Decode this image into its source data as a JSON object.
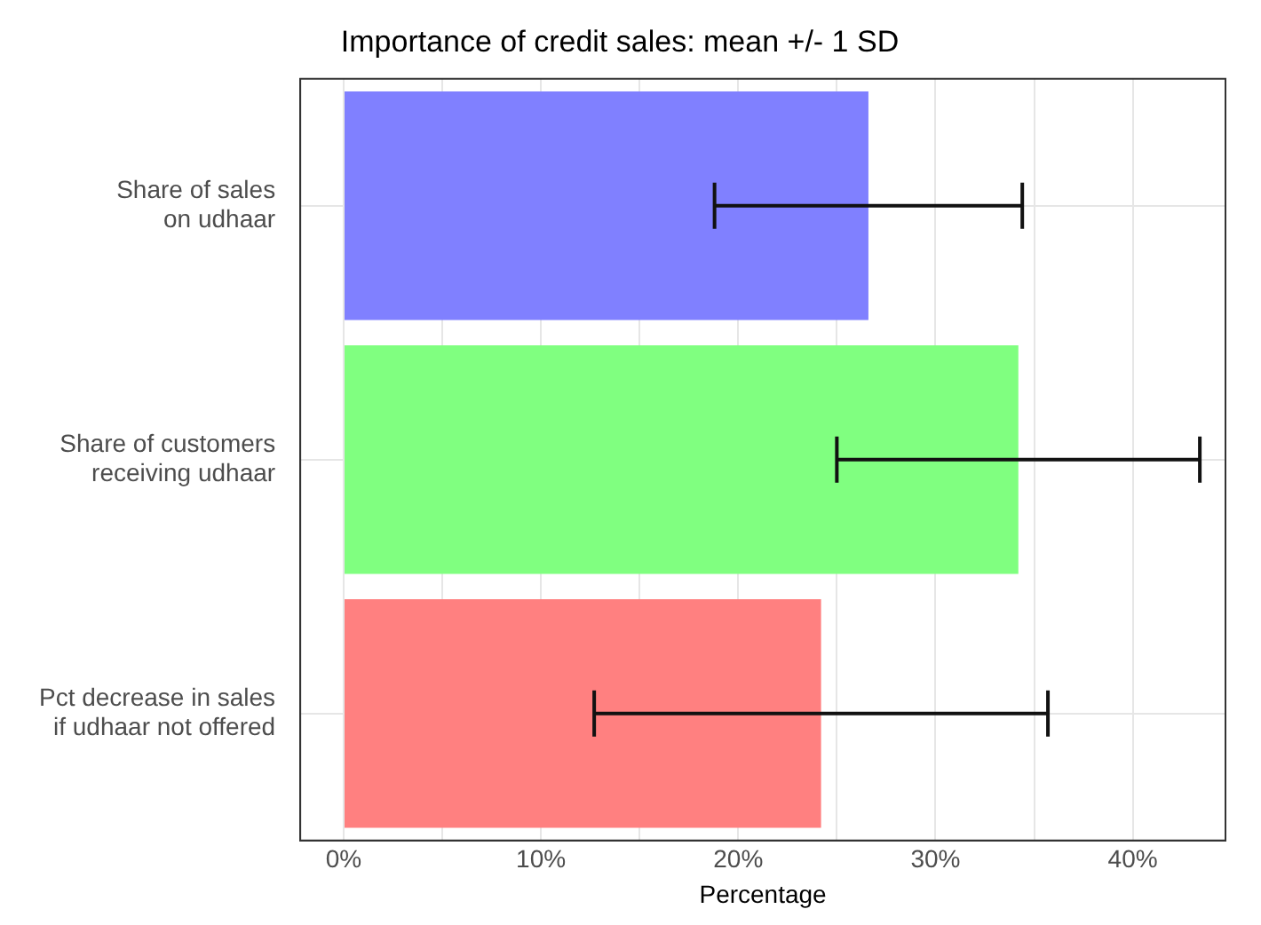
{
  "chart_data": {
    "type": "bar",
    "orientation": "horizontal",
    "title": "Importance of credit sales: mean +/- 1 SD",
    "xlabel": "Percentage",
    "categories": [
      "Share of sales\non udhaar",
      "Share of customers\nreceiving udhaar",
      "Pct decrease in sales\nif udhaar not offered"
    ],
    "values": [
      26.6,
      34.2,
      24.2
    ],
    "colors": [
      "#8080ff",
      "#80ff80",
      "#ff8080"
    ],
    "errors": [
      7.8,
      9.2,
      11.5
    ],
    "xlim": [
      -2.2,
      44.7
    ],
    "xticks": [
      {
        "value": 0,
        "label": "0%"
      },
      {
        "value": 5,
        "label": null
      },
      {
        "value": 10,
        "label": "10%"
      },
      {
        "value": 15,
        "label": null
      },
      {
        "value": 20,
        "label": "20%"
      },
      {
        "value": 25,
        "label": null
      },
      {
        "value": 30,
        "label": "30%"
      },
      {
        "value": 35,
        "label": null
      },
      {
        "value": 40,
        "label": "40%"
      }
    ],
    "grid": true,
    "legend": false
  }
}
